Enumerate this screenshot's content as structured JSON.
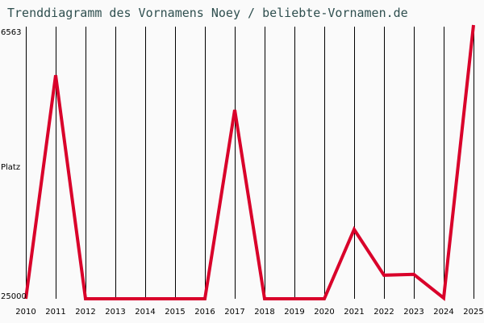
{
  "title": "Trenddiagramm des Vornamens Noey / beliebte-Vornamen.de",
  "y_axis": {
    "top_label": "6563",
    "middle_label": "Platz",
    "bottom_label": "25000"
  },
  "colors": {
    "line": "#d9002a",
    "grid": "#000000",
    "title": "#2f4f4f",
    "background": "#fafafa"
  },
  "chart_data": {
    "type": "line",
    "title": "Trenddiagramm des Vornamens Noey / beliebte-Vornamen.de",
    "xlabel": "",
    "ylabel": "Platz",
    "ylim": [
      25000,
      6563
    ],
    "y_inverted": true,
    "grid": "vertical",
    "categories": [
      "2010",
      "2011",
      "2012",
      "2013",
      "2014",
      "2015",
      "2016",
      "2017",
      "2018",
      "2019",
      "2020",
      "2021",
      "2022",
      "2023",
      "2024",
      "2025"
    ],
    "series": [
      {
        "name": "Noey",
        "values": [
          25000,
          9850,
          25000,
          25000,
          25000,
          25000,
          25000,
          12200,
          25000,
          25000,
          25000,
          20300,
          23400,
          23350,
          24950,
          6563
        ]
      }
    ]
  }
}
